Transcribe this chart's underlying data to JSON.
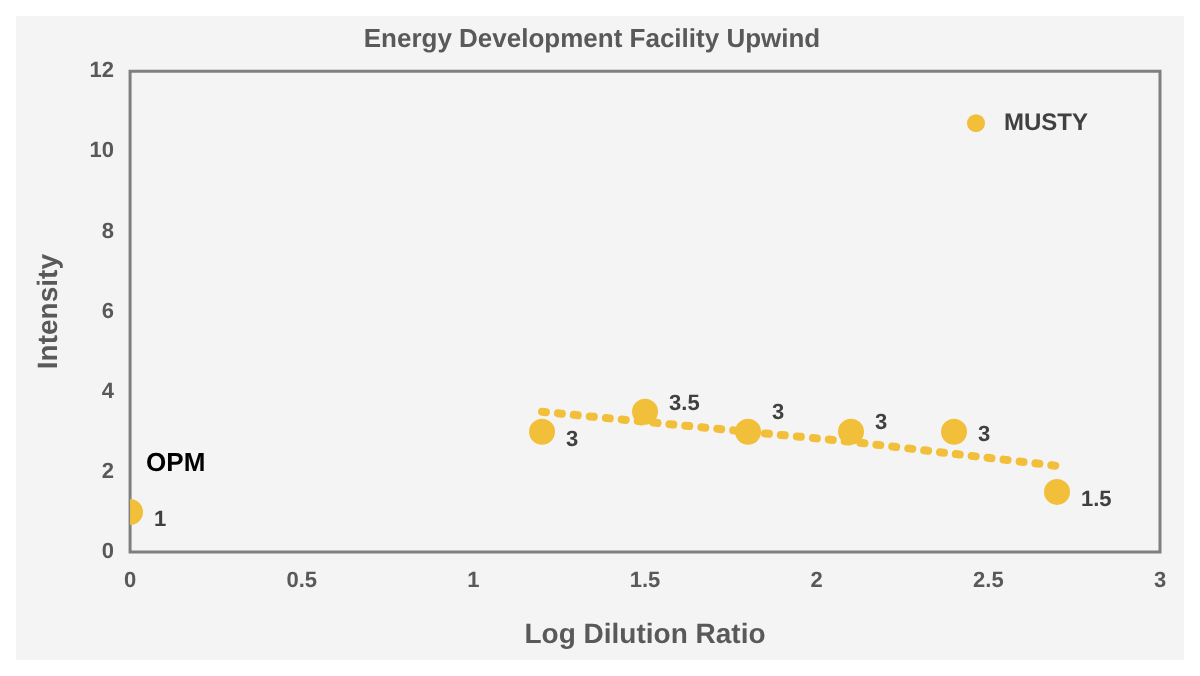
{
  "chart_data": {
    "type": "scatter",
    "title": "Energy Development Facility Upwind",
    "xlabel": "Log Dilution Ratio",
    "ylabel": "Intensity",
    "x": [
      0,
      1.2,
      1.5,
      1.8,
      2.1,
      2.4,
      2.7
    ],
    "series": [
      {
        "name": "MUSTY",
        "color": "#f2bf3a",
        "marker": "circle",
        "values": [
          1,
          3,
          3.5,
          3,
          3,
          3,
          1.5
        ],
        "value_labels": [
          "1",
          "3",
          "3.5",
          "3",
          "3",
          "3",
          "1.5"
        ]
      },
      {
        "type": "line",
        "color": "#f2bf3a",
        "line_style": "dotted",
        "marker": "none",
        "x": [
          1.2,
          1.5,
          1.8,
          2.1,
          2.4,
          2.7
        ],
        "values": [
          3.5,
          3.25,
          3,
          2.75,
          2.45,
          2.15
        ]
      }
    ],
    "xlim": [
      0,
      3
    ],
    "xticks": [
      0,
      0.5,
      1,
      1.5,
      2,
      2.5,
      3
    ],
    "ylim": [
      0,
      12
    ],
    "yticks": [
      0,
      2,
      4,
      6,
      8,
      10,
      12
    ],
    "grid": false,
    "legend": "top right",
    "annotations": [
      {
        "text": "OPM",
        "x": 0,
        "y": 1
      }
    ]
  }
}
